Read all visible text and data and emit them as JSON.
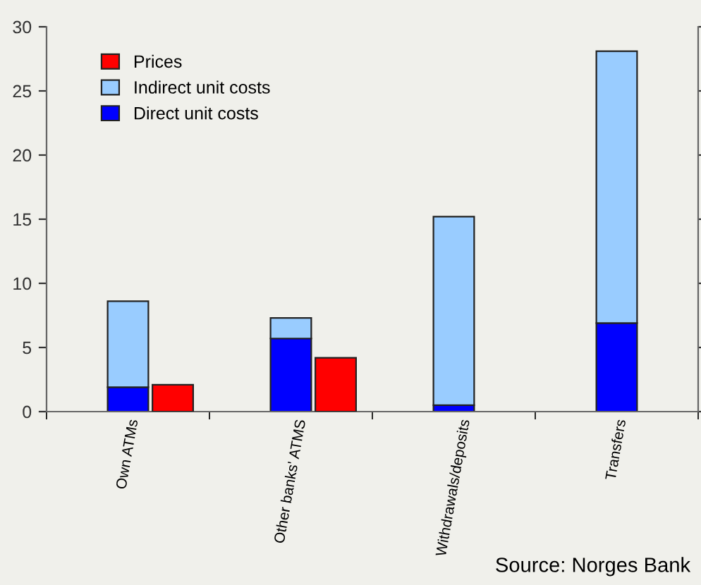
{
  "chart_data": [
    {
      "type": "bar",
      "stacked": true,
      "categories": [
        "Own ATMs",
        "Other banks' ATMS",
        "Withdrawals/deposits",
        "Transfers"
      ],
      "series": [
        {
          "name": "Direct unit costs",
          "color": "#0000ff",
          "values": [
            1.9,
            5.7,
            0.5,
            6.9
          ]
        },
        {
          "name": "Indirect unit costs",
          "color": "#99ccff",
          "values": [
            6.7,
            1.6,
            14.7,
            21.2
          ]
        }
      ],
      "ylim": [
        0,
        30
      ],
      "yticks": [
        0,
        5,
        10,
        15,
        20,
        25,
        30
      ],
      "grid": false,
      "legend": "top left",
      "annotations": [
        "Source: Norges Bank"
      ]
    },
    {
      "type": "bar",
      "categories": [
        null,
        null,
        null,
        null
      ],
      "series": [
        {
          "name": "Prices",
          "color": "#ff0000",
          "values": [
            2.1,
            4.2,
            null,
            null
          ]
        }
      ],
      "ylim": [
        0,
        30
      ],
      "yticks": [
        0,
        5,
        10,
        15,
        20,
        25,
        30
      ],
      "tick_labels": false,
      "grid": false,
      "legend": "top left"
    }
  ]
}
